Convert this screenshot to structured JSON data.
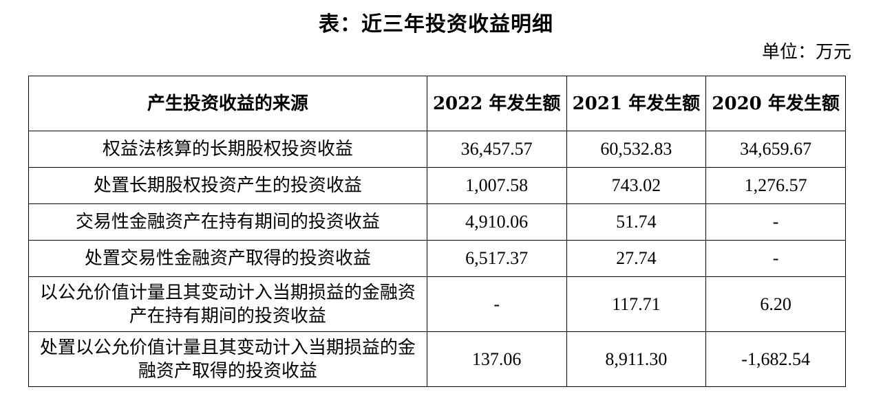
{
  "title": "表：近三年投资收益明细",
  "unit": "单位：万元",
  "table": {
    "headers": [
      "产生投资收益的来源",
      "2022 年发生额",
      "2021 年发生额",
      "2020 年发生额"
    ],
    "rows": [
      {
        "source": "权益法核算的长期股权投资收益",
        "y2022": "36,457.57",
        "y2021": "60,532.83",
        "y2020": "34,659.67"
      },
      {
        "source": "处置长期股权投资产生的投资收益",
        "y2022": "1,007.58",
        "y2021": "743.02",
        "y2020": "1,276.57"
      },
      {
        "source": "交易性金融资产在持有期间的投资收益",
        "y2022": "4,910.06",
        "y2021": "51.74",
        "y2020": "-"
      },
      {
        "source": "处置交易性金融资产取得的投资收益",
        "y2022": "6,517.37",
        "y2021": "27.74",
        "y2020": "-"
      },
      {
        "source": "以公允价值计量且其变动计入当期损益的金融资产在持有期间的投资收益",
        "y2022": "-",
        "y2021": "117.71",
        "y2020": "6.20"
      },
      {
        "source": "处置以公允价值计量且其变动计入当期损益的金融资产取得的投资收益",
        "y2022": "137.06",
        "y2021": "8,911.30",
        "y2020": "-1,682.54"
      }
    ]
  }
}
